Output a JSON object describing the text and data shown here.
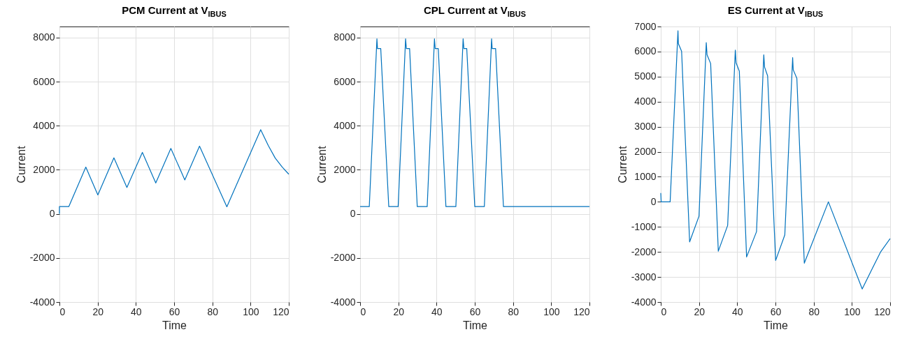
{
  "chart_data": [
    {
      "type": "line",
      "title": "PCM Current at V$_{IBUS}$",
      "xlabel": "Time",
      "ylabel": "Current",
      "xlim": [
        0,
        120
      ],
      "xticks": [
        0,
        20,
        40,
        60,
        80,
        100,
        120
      ],
      "ylim": [
        -4000,
        8500
      ],
      "yticks": [
        -4000,
        -2000,
        0,
        2000,
        4000,
        6000,
        8000
      ],
      "grid": true,
      "line_style": "solid",
      "series": [
        {
          "color": "#0072bd",
          "x": [
            0,
            0,
            4.9,
            13.8,
            20.1,
            28.5,
            35.3,
            43.4,
            50.4,
            58.3,
            65.6,
            73.3,
            87.6,
            105.3,
            109.2,
            112.9,
            116.6,
            120
          ],
          "values": [
            0,
            330,
            330,
            2120,
            860,
            2540,
            1200,
            2790,
            1400,
            2970,
            1540,
            3070,
            320,
            3820,
            3110,
            2530,
            2120,
            1800
          ]
        }
      ]
    },
    {
      "type": "line",
      "title": "CPL Current at V$_{IBUS}$",
      "xlabel": "Time",
      "ylabel": "Current",
      "xlim": [
        0,
        120
      ],
      "xticks": [
        0,
        20,
        40,
        60,
        80,
        100,
        120
      ],
      "ylim": [
        -4000,
        8500
      ],
      "yticks": [
        -4000,
        -2000,
        0,
        2000,
        4000,
        6000,
        8000
      ],
      "grid": true,
      "line_style": "solid",
      "series": [
        {
          "color": "#0072bd",
          "x": [
            0,
            4.8,
            8.8,
            9.1,
            10.8,
            15.0,
            19.9,
            23.8,
            24.2,
            25.9,
            29.9,
            35.1,
            38.9,
            39.3,
            40.9,
            44.9,
            50.1,
            53.9,
            54.3,
            55.8,
            60.0,
            65.0,
            68.8,
            69.1,
            70.9,
            75.0,
            120
          ],
          "values": [
            330,
            330,
            7940,
            7500,
            7500,
            330,
            330,
            7940,
            7500,
            7500,
            330,
            330,
            7940,
            7500,
            7500,
            330,
            330,
            7940,
            7500,
            7500,
            330,
            330,
            7940,
            7500,
            7500,
            330,
            330
          ]
        }
      ]
    },
    {
      "type": "line",
      "title": "ES Current at V$_{IBUS}$",
      "xlabel": "Time",
      "ylabel": "Current",
      "xlim": [
        0,
        120
      ],
      "xticks": [
        0,
        20,
        40,
        60,
        80,
        100,
        120
      ],
      "ylim": [
        -4000,
        7000
      ],
      "yticks": [
        -4000,
        -3000,
        -2000,
        -1000,
        0,
        1000,
        2000,
        3000,
        4000,
        5000,
        6000,
        7000
      ],
      "grid": true,
      "line_style": "solid",
      "series": [
        {
          "color": "#0072bd",
          "x": [
            0,
            0.2,
            4.9,
            9.0,
            9.2,
            10.9,
            15.1,
            20.0,
            23.8,
            24.2,
            26.1,
            30.1,
            35.0,
            39.0,
            39.4,
            41.1,
            44.9,
            50.1,
            53.9,
            54.3,
            55.9,
            60.1,
            64.9,
            69.0,
            69.3,
            71.2,
            75.1,
            87.7,
            105.4,
            110.8,
            115.1,
            120
          ],
          "values": [
            350,
            0,
            0,
            6830,
            6320,
            6010,
            -1600,
            -570,
            6360,
            5870,
            5520,
            -1970,
            -940,
            6060,
            5550,
            5220,
            -2200,
            -1190,
            5870,
            5380,
            5030,
            -2340,
            -1320,
            5760,
            5270,
            4930,
            -2450,
            0,
            -3480,
            -2640,
            -1990,
            -1470
          ]
        }
      ]
    }
  ]
}
